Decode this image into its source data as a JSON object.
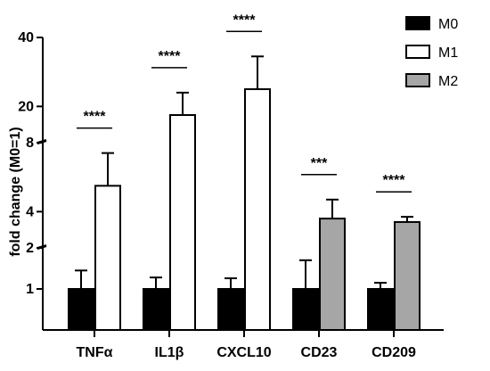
{
  "chart_data": {
    "type": "bar",
    "ylabel": "fold change (M0=1)",
    "y_axis": {
      "broken": true,
      "segments": [
        {
          "range": [
            0,
            2
          ],
          "ticks": [
            1,
            2
          ]
        },
        {
          "range": [
            2,
            8
          ],
          "ticks": [
            4,
            8
          ]
        },
        {
          "range": [
            10,
            40
          ],
          "ticks": [
            20,
            40
          ]
        }
      ]
    },
    "categories": [
      "TNFα",
      "IL1β",
      "CXCL10",
      "CD23",
      "CD209"
    ],
    "series": [
      {
        "name": "M0",
        "color": "#000000",
        "fill": "#000000",
        "values": [
          1,
          1,
          1,
          1,
          1
        ],
        "errors": [
          0.45,
          0.28,
          0.26,
          0.7,
          0.15
        ]
      },
      {
        "name": "M1",
        "color": "#000000",
        "fill": "#ffffff",
        "values": [
          5.5,
          17.5,
          25,
          null,
          null
        ],
        "errors": [
          1.9,
          6.5,
          9.5,
          null,
          null
        ]
      },
      {
        "name": "M2",
        "color": "#000000",
        "fill": "#a6a6a6",
        "values": [
          null,
          null,
          null,
          3.6,
          3.4
        ],
        "errors": [
          null,
          null,
          null,
          1.1,
          0.3
        ]
      }
    ],
    "significance": [
      "****",
      "****",
      "****",
      "***",
      "****"
    ],
    "legend": {
      "placement": "top-right"
    },
    "grid": false
  }
}
